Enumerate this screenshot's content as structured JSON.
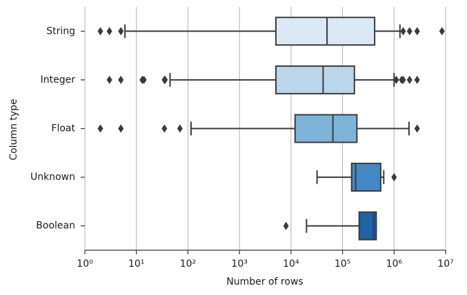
{
  "chart_data": {
    "type": "box",
    "x_label": "Number of rows",
    "y_label": "Column type",
    "xscale": "log",
    "grid": true,
    "xlim": [
      1,
      10000000
    ],
    "xticks": [
      {
        "value": 1,
        "label": "10⁰"
      },
      {
        "value": 10,
        "label": "10¹"
      },
      {
        "value": 100,
        "label": "10²"
      },
      {
        "value": 1000,
        "label": "10³"
      },
      {
        "value": 10000,
        "label": "10⁴"
      },
      {
        "value": 100000,
        "label": "10⁵"
      },
      {
        "value": 1000000,
        "label": "10⁶"
      },
      {
        "value": 10000000,
        "label": "10⁷"
      }
    ],
    "categories": [
      "String",
      "Integer",
      "Float",
      "Unknown",
      "Boolean"
    ],
    "boxes": [
      {
        "color": "#dbe9f6",
        "whislo": 6,
        "q1": 5100,
        "med": 50000,
        "q3": 420000,
        "whishi": 1300000,
        "fliers": [
          2,
          3,
          5,
          1500000,
          2000000,
          2800000,
          8500000
        ]
      },
      {
        "color": "#bad6eb",
        "whislo": 45,
        "q1": 5100,
        "med": 42000,
        "q3": 170000,
        "whishi": 1000000,
        "fliers": [
          3,
          5,
          13,
          14,
          35,
          36,
          1100000,
          1400000,
          1500000,
          2000000,
          2800000
        ]
      },
      {
        "color": "#7db4da",
        "whislo": 115,
        "q1": 12000,
        "med": 65000,
        "q3": 190000,
        "whishi": 1950000,
        "fliers": [
          2,
          5,
          35,
          70,
          2800000
        ]
      },
      {
        "color": "#4289c4",
        "whislo": 32000,
        "q1": 150000,
        "med": 180000,
        "q3": 550000,
        "whishi": 630000,
        "fliers": [
          1000000
        ]
      },
      {
        "color": "#2061a8",
        "whislo": 20000,
        "q1": 210000,
        "med": 400000,
        "q3": 450000,
        "whishi": 450000,
        "fliers": [
          8000
        ]
      }
    ]
  }
}
